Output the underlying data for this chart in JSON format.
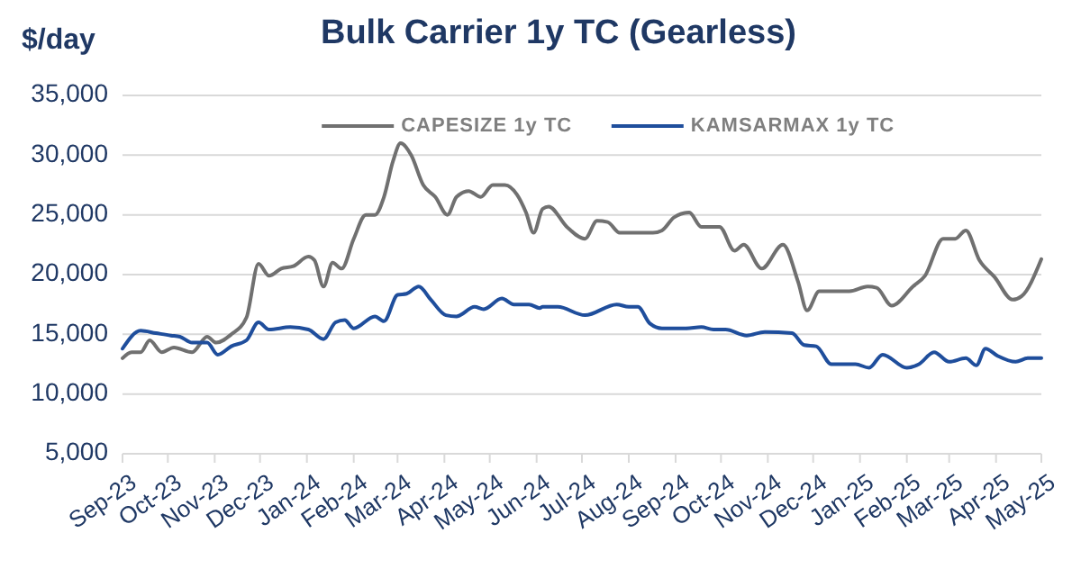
{
  "chart_data": {
    "type": "line",
    "title": "Bulk Carrier 1y TC (Gearless)",
    "ylabel": "$/day",
    "legend": "top",
    "grid": "y",
    "line_style": "solid",
    "marker": "none",
    "xlim": [
      "2023-09-01",
      "2025-05-01"
    ],
    "xticks": [
      {
        "value": "2023-09-01",
        "label": "Sep-23"
      },
      {
        "value": "2023-10-01",
        "label": "Oct-23"
      },
      {
        "value": "2023-11-01",
        "label": "Nov-23"
      },
      {
        "value": "2023-12-01",
        "label": "Dec-23"
      },
      {
        "value": "2024-01-01",
        "label": "Jan-24"
      },
      {
        "value": "2024-02-01",
        "label": "Feb-24"
      },
      {
        "value": "2024-03-01",
        "label": "Mar-24"
      },
      {
        "value": "2024-04-01",
        "label": "Apr-24"
      },
      {
        "value": "2024-05-01",
        "label": "May-24"
      },
      {
        "value": "2024-06-01",
        "label": "Jun-24"
      },
      {
        "value": "2024-07-01",
        "label": "Jul-24"
      },
      {
        "value": "2024-08-01",
        "label": "Aug-24"
      },
      {
        "value": "2024-09-01",
        "label": "Sep-24"
      },
      {
        "value": "2024-10-01",
        "label": "Oct-24"
      },
      {
        "value": "2024-11-01",
        "label": "Nov-24"
      },
      {
        "value": "2024-12-01",
        "label": "Dec-24"
      },
      {
        "value": "2025-01-01",
        "label": "Jan-25"
      },
      {
        "value": "2025-02-01",
        "label": "Feb-25"
      },
      {
        "value": "2025-03-01",
        "label": "Mar-25"
      },
      {
        "value": "2025-04-01",
        "label": "Apr-25"
      },
      {
        "value": "2025-05-01",
        "label": "May-25"
      }
    ],
    "ylim": [
      5000,
      35000
    ],
    "yticks": [
      {
        "value": 5000,
        "label": "5,000"
      },
      {
        "value": 10000,
        "label": "10,000"
      },
      {
        "value": 15000,
        "label": "15,000"
      },
      {
        "value": 20000,
        "label": "20,000"
      },
      {
        "value": 25000,
        "label": "25,000"
      },
      {
        "value": 30000,
        "label": "30,000"
      },
      {
        "value": 35000,
        "label": "35,000"
      }
    ],
    "series": [
      {
        "name": "CAPESIZE 1y TC",
        "color": "#707070",
        "x": [
          "2023-09-01",
          "2023-09-07",
          "2023-09-13",
          "2023-09-19",
          "2023-09-27",
          "2023-10-05",
          "2023-10-17",
          "2023-10-27",
          "2023-11-02",
          "2023-11-12",
          "2023-11-22",
          "2023-11-30",
          "2023-12-07",
          "2023-12-15",
          "2023-12-23",
          "2024-01-02",
          "2024-01-06",
          "2024-01-12",
          "2024-01-18",
          "2024-01-24",
          "2024-02-01",
          "2024-02-09",
          "2024-02-15",
          "2024-02-21",
          "2024-02-27",
          "2024-03-03",
          "2024-03-10",
          "2024-03-18",
          "2024-03-26",
          "2024-04-03",
          "2024-04-09",
          "2024-04-17",
          "2024-04-25",
          "2024-05-03",
          "2024-05-11",
          "2024-05-19",
          "2024-05-25",
          "2024-05-30",
          "2024-06-05",
          "2024-06-09",
          "2024-06-21",
          "2024-07-03",
          "2024-07-11",
          "2024-07-18",
          "2024-07-26",
          "2024-08-17",
          "2024-08-23",
          "2024-08-31",
          "2024-09-10",
          "2024-09-18",
          "2024-09-30",
          "2024-10-10",
          "2024-10-16",
          "2024-10-28",
          "2024-11-11",
          "2024-11-21",
          "2024-11-27",
          "2024-12-05",
          "2024-12-25",
          "2025-01-06",
          "2025-01-12",
          "2025-01-22",
          "2025-02-05",
          "2025-02-13",
          "2025-02-25",
          "2025-03-05",
          "2025-03-12",
          "2025-03-21",
          "2025-03-31",
          "2025-04-12",
          "2025-04-18",
          "2025-05-01"
        ],
        "values": [
          13000,
          13500,
          13500,
          14500,
          13500,
          13900,
          13500,
          14800,
          14300,
          15000,
          16400,
          20900,
          19900,
          20500,
          20700,
          21500,
          21200,
          19000,
          21000,
          20500,
          23000,
          25000,
          25000,
          26500,
          29500,
          31000,
          30000,
          27500,
          26500,
          25000,
          26500,
          27000,
          26500,
          27500,
          27500,
          26700,
          25200,
          23500,
          25500,
          25700,
          24000,
          23000,
          24500,
          24400,
          23500,
          23500,
          23700,
          24800,
          25200,
          24000,
          24000,
          22000,
          22500,
          20500,
          22500,
          19400,
          17000,
          18600,
          18600,
          19000,
          18900,
          17400,
          19000,
          19900,
          23000,
          23000,
          23700,
          21200,
          19800,
          17900,
          18200,
          21300
        ]
      },
      {
        "name": "KAMSARMAX 1y TC",
        "color": "#1f4e9c",
        "x": [
          "2023-09-01",
          "2023-09-13",
          "2023-09-23",
          "2023-10-03",
          "2023-10-09",
          "2023-10-17",
          "2023-10-27",
          "2023-11-03",
          "2023-11-12",
          "2023-11-22",
          "2023-11-30",
          "2023-12-07",
          "2023-12-21",
          "2024-01-02",
          "2024-01-12",
          "2024-01-20",
          "2024-01-26",
          "2024-02-01",
          "2024-02-15",
          "2024-02-21",
          "2024-03-01",
          "2024-03-07",
          "2024-03-15",
          "2024-03-23",
          "2024-04-02",
          "2024-04-09",
          "2024-04-21",
          "2024-04-27",
          "2024-05-09",
          "2024-05-17",
          "2024-05-27",
          "2024-06-03",
          "2024-06-05",
          "2024-06-15",
          "2024-07-03",
          "2024-07-24",
          "2024-08-01",
          "2024-08-07",
          "2024-08-15",
          "2024-08-23",
          "2024-09-08",
          "2024-09-18",
          "2024-09-26",
          "2024-10-04",
          "2024-10-18",
          "2024-10-30",
          "2024-11-17",
          "2024-11-25",
          "2024-12-03",
          "2024-12-13",
          "2024-12-29",
          "2025-01-07",
          "2025-01-16",
          "2025-02-01",
          "2025-02-09",
          "2025-02-19",
          "2025-03-01",
          "2025-03-12",
          "2025-03-19",
          "2025-03-25",
          "2025-04-02",
          "2025-04-14",
          "2025-04-22",
          "2025-05-01"
        ],
        "values": [
          13800,
          15300,
          15100,
          14900,
          14800,
          14300,
          14300,
          13300,
          14000,
          14500,
          16000,
          15400,
          15600,
          15400,
          14600,
          16000,
          16200,
          15500,
          16500,
          16100,
          18300,
          18400,
          19000,
          17900,
          16600,
          16500,
          17300,
          17100,
          18000,
          17500,
          17500,
          17200,
          17300,
          17300,
          16600,
          17500,
          17300,
          17300,
          15900,
          15500,
          15500,
          15600,
          15400,
          15400,
          14900,
          15200,
          15100,
          14100,
          14000,
          12500,
          12500,
          12200,
          13300,
          12200,
          12500,
          13500,
          12700,
          13000,
          12400,
          13800,
          13200,
          12700,
          13000,
          13000
        ]
      }
    ]
  }
}
